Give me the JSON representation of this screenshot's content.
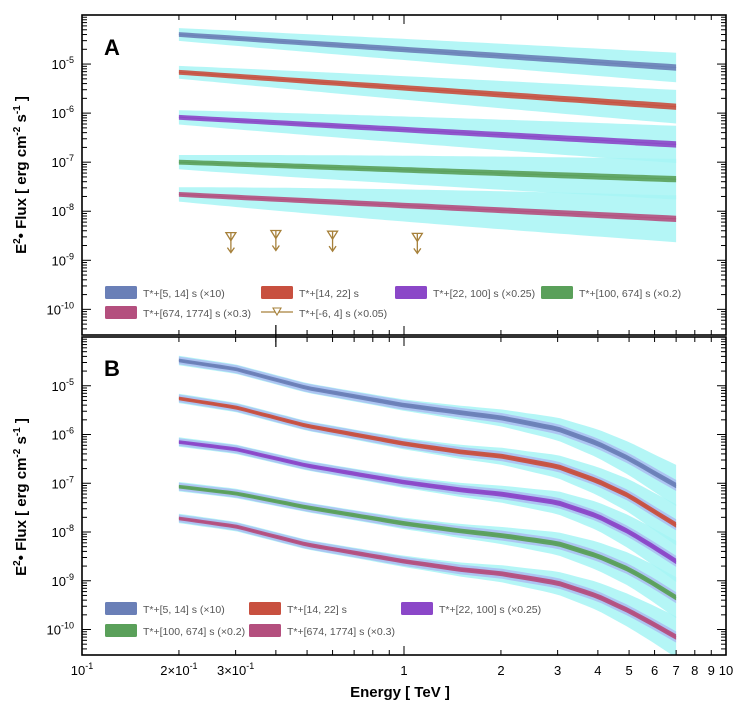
{
  "chart_data": [
    {
      "type": "line",
      "panel_label": "A",
      "xlabel": "Energy [ TeV ]",
      "ylabel": "E2• Flux [ erg cm-2 s-1 ]",
      "x_scale": "log",
      "y_scale": "log",
      "xlim": [
        0.1,
        10
      ],
      "ylim": [
        3e-11,
        0.0001
      ],
      "x_range": [
        0.2,
        7
      ],
      "y_tick_labels": [
        "10-10",
        "10-9",
        "10-8",
        "10-7",
        "10-6",
        "10-5"
      ],
      "series": [
        {
          "name": "T*+[5, 14] s (×10)",
          "color": "#6a7fb7",
          "band_color": "#a7f4f5",
          "band_factor": [
            1.35,
            2.0
          ],
          "x": [
            0.2,
            7
          ],
          "y": [
            4e-05,
            8.5e-06
          ]
        },
        {
          "name": "T*+[14, 22] s",
          "color": "#c8503f",
          "band_color": "#a7f4f5",
          "band_factor": [
            1.35,
            2.2
          ],
          "x": [
            0.2,
            7
          ],
          "y": [
            6.8e-06,
            1.35e-06
          ]
        },
        {
          "name": "T*+[22, 100] s (×0.25)",
          "color": "#8b47c8",
          "band_color": "#a7f4f5",
          "band_factor": [
            1.4,
            2.4
          ],
          "x": [
            0.2,
            7
          ],
          "y": [
            8.2e-07,
            2.3e-07
          ]
        },
        {
          "name": "T*+[100, 674] s (×0.2)",
          "color": "#5aa05a",
          "band_color": "#a7f4f5",
          "band_factor": [
            1.4,
            2.6
          ],
          "x": [
            0.2,
            7
          ],
          "y": [
            1e-07,
            4.5e-08
          ]
        },
        {
          "name": "T*+[674, 1774] s (×0.3)",
          "color": "#b44f7e",
          "band_color": "#a7f4f5",
          "band_factor": [
            1.4,
            3.0
          ],
          "x": [
            0.2,
            7
          ],
          "y": [
            2.2e-08,
            7e-09
          ]
        }
      ],
      "upper_limits": {
        "name": "T*+[-6, 4] s (×0.05)",
        "color": "#a6803a",
        "points": [
          {
            "x": 0.29,
            "y": 2.9e-09
          },
          {
            "x": 0.4,
            "y": 3.2e-09
          },
          {
            "x": 0.6,
            "y": 3.1e-09
          },
          {
            "x": 1.1,
            "y": 2.8e-09
          }
        ]
      },
      "legend": {
        "placement": "bottom",
        "entries": [
          {
            "label": "T*+[5, 14] s (×10)",
            "color": "#6a7fb7"
          },
          {
            "label": "T*+[14, 22] s",
            "color": "#c8503f"
          },
          {
            "label": "T*+[22, 100] s (×0.25)",
            "color": "#8b47c8"
          },
          {
            "label": "T*+[100, 674] s (×0.2)",
            "color": "#5aa05a"
          },
          {
            "label": "T*+[674, 1774] s (×0.3)",
            "color": "#b44f7e"
          },
          {
            "label": "T*+[-6, 4] s (×0.05)",
            "color": "#a6803a"
          }
        ]
      }
    },
    {
      "type": "line",
      "panel_label": "B",
      "xlabel": "Energy [ TeV ]",
      "ylabel": "E2• Flux [ erg cm-2 s-1 ]",
      "x_scale": "log",
      "y_scale": "log",
      "xlim": [
        0.1,
        10
      ],
      "ylim": [
        3e-11,
        0.0001
      ],
      "x_range": [
        0.2,
        7
      ],
      "y_tick_labels": [
        "10-10",
        "10-9",
        "10-8",
        "10-7",
        "10-6",
        "10-5"
      ],
      "x_tick_labels": [
        "10-1",
        "2×10-1",
        "3×10-1",
        "1",
        "2",
        "3",
        "4",
        "5",
        "6",
        "7",
        "8",
        "9",
        "10"
      ],
      "series": [
        {
          "name": "T*+[5, 14] s (×10)",
          "color": "#6a7fb7",
          "x": [
            0.2,
            0.3,
            0.5,
            1,
            1.5,
            2,
            3,
            4,
            5,
            6,
            7
          ],
          "y": [
            3.3e-05,
            2.2e-05,
            9e-06,
            4e-06,
            2.8e-06,
            2.2e-06,
            1.3e-06,
            6.5e-07,
            3.2e-07,
            1.6e-07,
            9e-08
          ]
        },
        {
          "name": "T*+[14, 22] s",
          "color": "#c8503f",
          "x": [
            0.2,
            0.3,
            0.5,
            1,
            1.5,
            2,
            3,
            4,
            5,
            6,
            7
          ],
          "y": [
            5.5e-06,
            3.6e-06,
            1.5e-06,
            6.5e-07,
            4.4e-07,
            3.6e-07,
            2.2e-07,
            1.1e-07,
            5.5e-08,
            2.6e-08,
            1.4e-08
          ]
        },
        {
          "name": "T*+[22, 100] s (×0.25)",
          "color": "#8b47c8",
          "x": [
            0.2,
            0.3,
            0.5,
            1,
            1.5,
            2,
            3,
            4,
            5,
            6,
            7
          ],
          "y": [
            7e-07,
            5e-07,
            2.3e-07,
            1.05e-07,
            7.3e-08,
            6e-08,
            4e-08,
            2.1e-08,
            1e-08,
            4.8e-09,
            2.5e-09
          ]
        },
        {
          "name": "T*+[100, 674] s (×0.2)",
          "color": "#5aa05a",
          "x": [
            0.2,
            0.3,
            0.5,
            1,
            1.5,
            2,
            3,
            4,
            5,
            6,
            7
          ],
          "y": [
            8.5e-08,
            6.2e-08,
            3.2e-08,
            1.5e-08,
            1.05e-08,
            8.5e-09,
            5.8e-09,
            3.2e-09,
            1.7e-09,
            8.5e-10,
            4.5e-10
          ]
        },
        {
          "name": "T*+[674, 1774] s (×0.3)",
          "color": "#b44f7e",
          "x": [
            0.2,
            0.3,
            0.5,
            1,
            1.5,
            2,
            3,
            4,
            5,
            6,
            7
          ],
          "y": [
            1.9e-08,
            1.3e-08,
            5.5e-09,
            2.5e-09,
            1.7e-09,
            1.4e-09,
            9e-10,
            4.8e-10,
            2.4e-10,
            1.25e-10,
            7e-11
          ]
        }
      ],
      "legend": {
        "placement": "bottom",
        "entries": [
          {
            "label": "T*+[5, 14] s (×10)",
            "color": "#6a7fb7"
          },
          {
            "label": "T*+[14, 22] s",
            "color": "#c8503f"
          },
          {
            "label": "T*+[22, 100] s (×0.25)",
            "color": "#8b47c8"
          },
          {
            "label": "T*+[100, 674] s (×0.2)",
            "color": "#5aa05a"
          },
          {
            "label": "T*+[674, 1774] s (×0.3)",
            "color": "#b44f7e"
          }
        ]
      }
    }
  ],
  "band_colors": {
    "outer": "#a7f4f5",
    "inner_B": "#aab4f0"
  }
}
